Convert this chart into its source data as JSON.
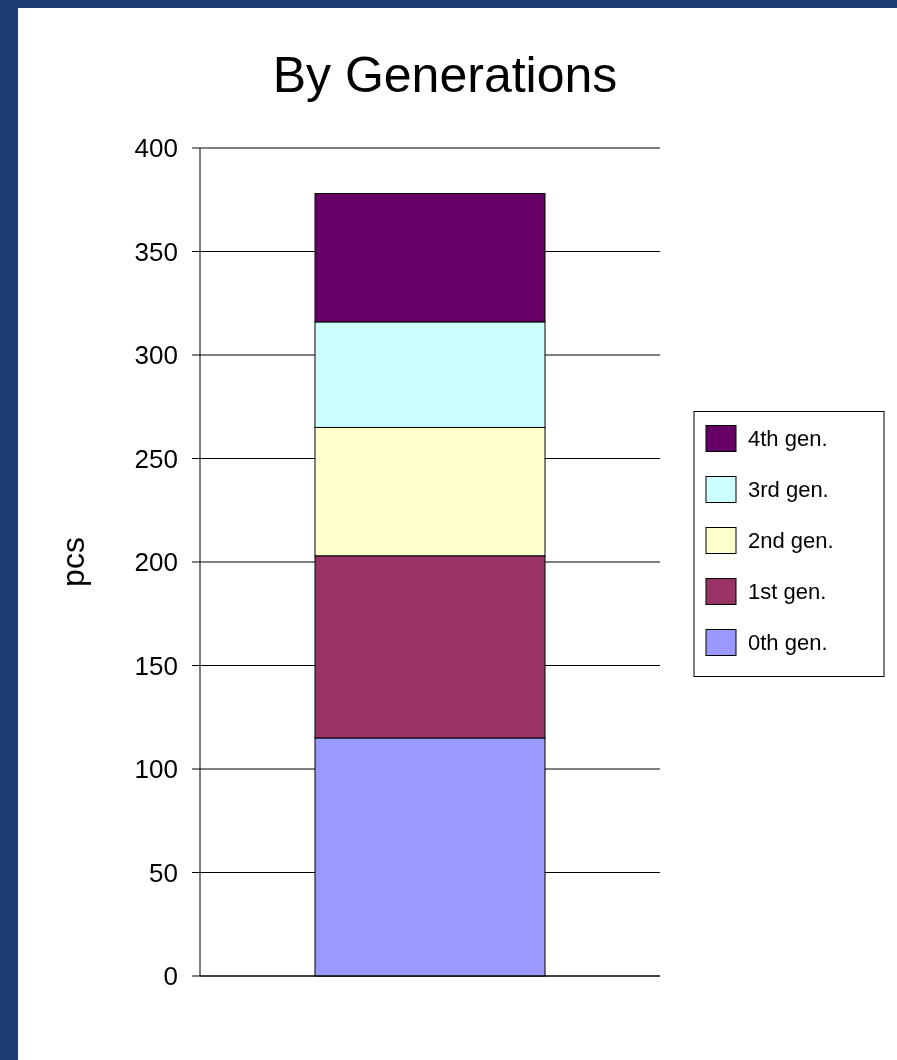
{
  "chart_data": {
    "type": "bar",
    "title": "By Generations",
    "ylabel": "pcs",
    "categories": [
      null
    ],
    "stacked": true,
    "series": [
      {
        "name": "0th gen.",
        "color": "#9999ff",
        "values": [
          115
        ]
      },
      {
        "name": "1st gen.",
        "color": "#993366",
        "values": [
          88
        ]
      },
      {
        "name": "2nd gen.",
        "color": "#ffffcc",
        "values": [
          62
        ]
      },
      {
        "name": "3rd gen.",
        "color": "#ccffff",
        "values": [
          51
        ]
      },
      {
        "name": "4th gen.",
        "color": "#660066",
        "values": [
          62
        ]
      }
    ],
    "ylim": [
      0,
      400
    ],
    "yticks": [
      0,
      50,
      100,
      150,
      200,
      250,
      300,
      350,
      400
    ],
    "grid": "y",
    "legend": "right"
  }
}
